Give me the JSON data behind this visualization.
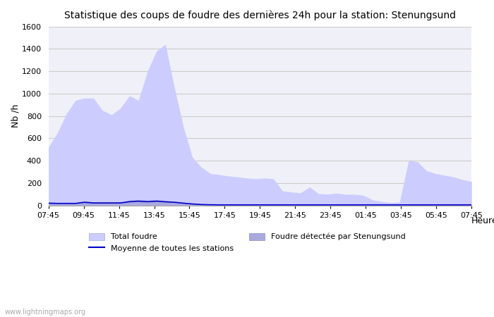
{
  "title": "Statistique des coups de foudre des dernières 24h pour la station: Stenungsund",
  "ylabel": "Nb /h",
  "xlabel": "Heure",
  "watermark": "www.lightningmaps.org",
  "ylim": [
    0,
    1600
  ],
  "yticks": [
    0,
    200,
    400,
    600,
    800,
    1000,
    1200,
    1400,
    1600
  ],
  "xtick_labels": [
    "07:45",
    "09:45",
    "11:45",
    "13:45",
    "15:45",
    "17:45",
    "19:45",
    "21:45",
    "23:45",
    "01:45",
    "03:45",
    "05:45",
    "07:45"
  ],
  "bg_color": "#ffffff",
  "plot_bg_color": "#f0f0f8",
  "grid_color": "#cccccc",
  "total_foudre_color": "#ccccff",
  "stenungsund_color": "#aaaadd",
  "moyenne_color": "#0000cc",
  "total_foudre": [
    520,
    650,
    820,
    940,
    960,
    960,
    850,
    810,
    870,
    980,
    940,
    1200,
    1380,
    1440,
    1050,
    700,
    430,
    340,
    285,
    275,
    263,
    255,
    245,
    238,
    245,
    238,
    130,
    120,
    112,
    165,
    105,
    100,
    110,
    100,
    100,
    90,
    50,
    35,
    25,
    30,
    400,
    390,
    310,
    285,
    270,
    255,
    230,
    215
  ],
  "stenungsund": [
    30,
    22,
    22,
    20,
    38,
    32,
    30,
    32,
    32,
    48,
    52,
    48,
    52,
    45,
    35,
    28,
    18,
    10,
    8,
    6,
    5,
    5,
    5,
    5,
    5,
    5,
    5,
    5,
    5,
    5,
    5,
    5,
    5,
    5,
    5,
    5,
    5,
    5,
    5,
    5,
    5,
    5,
    5,
    5,
    5,
    5,
    5,
    5
  ],
  "moyenne": [
    20,
    18,
    18,
    18,
    28,
    22,
    22,
    22,
    22,
    33,
    38,
    33,
    38,
    32,
    28,
    20,
    13,
    8,
    6,
    5,
    5,
    5,
    5,
    5,
    5,
    5,
    5,
    5,
    5,
    5,
    5,
    5,
    5,
    5,
    5,
    5,
    5,
    5,
    5,
    5,
    5,
    5,
    5,
    5,
    5,
    5,
    5,
    5
  ]
}
